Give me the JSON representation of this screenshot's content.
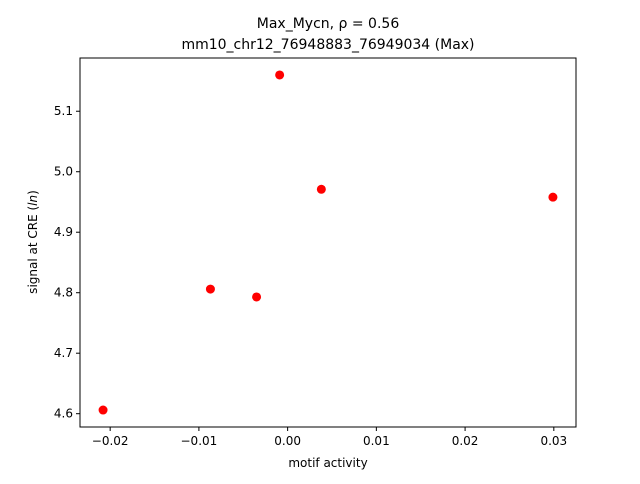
{
  "chart_data": {
    "type": "scatter",
    "title_lines": [
      "Max_Mycn, ρ = 0.56",
      "mm10_chr12_76948883_76949034 (Max)"
    ],
    "xlabel": "motif activity",
    "ylabel": "signal at CRE (ln)",
    "ylabel_parts": [
      "signal at CRE (",
      "ln",
      ")"
    ],
    "xlim": [
      -0.0234,
      0.0325
    ],
    "ylim": [
      4.578,
      5.188
    ],
    "xticks": [
      -0.02,
      -0.01,
      0.0,
      0.01,
      0.02,
      0.03
    ],
    "xtick_labels": [
      "−0.02",
      "−0.01",
      "0.00",
      "0.01",
      "0.02",
      "0.03"
    ],
    "yticks": [
      4.6,
      4.7,
      4.8,
      4.9,
      5.0,
      5.1
    ],
    "ytick_labels": [
      "4.6",
      "4.7",
      "4.8",
      "4.9",
      "5.0",
      "5.1"
    ],
    "grid": false,
    "legend": false,
    "marker_color": "#ff0000",
    "points": [
      {
        "x": -0.0208,
        "y": 4.606
      },
      {
        "x": -0.0087,
        "y": 4.806
      },
      {
        "x": -0.0035,
        "y": 4.793
      },
      {
        "x": -0.0009,
        "y": 5.16
      },
      {
        "x": 0.0038,
        "y": 4.971
      },
      {
        "x": 0.0299,
        "y": 4.958
      }
    ]
  }
}
